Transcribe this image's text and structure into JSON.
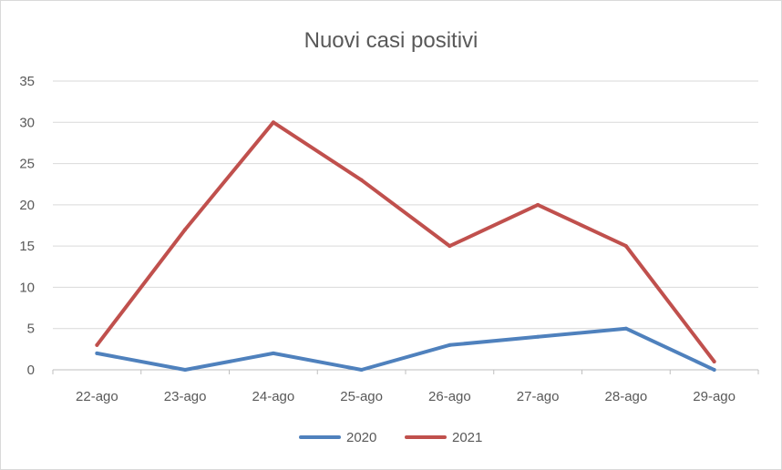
{
  "chart_data": {
    "type": "line",
    "title": "Nuovi casi positivi",
    "xlabel": "",
    "ylabel": "",
    "categories": [
      "22-ago",
      "23-ago",
      "24-ago",
      "25-ago",
      "26-ago",
      "27-ago",
      "28-ago",
      "29-ago"
    ],
    "ylim": [
      0,
      35
    ],
    "yticks": [
      "0",
      "5",
      "10",
      "15",
      "20",
      "25",
      "30",
      "35"
    ],
    "grid": true,
    "legend_position": "bottom",
    "series": [
      {
        "name": "2020",
        "color": "#4f81bd",
        "values": [
          2,
          0,
          2,
          0,
          3,
          4,
          5,
          0
        ]
      },
      {
        "name": "2021",
        "color": "#c0504d",
        "values": [
          3,
          17,
          30,
          23,
          15,
          20,
          15,
          1
        ]
      }
    ]
  }
}
